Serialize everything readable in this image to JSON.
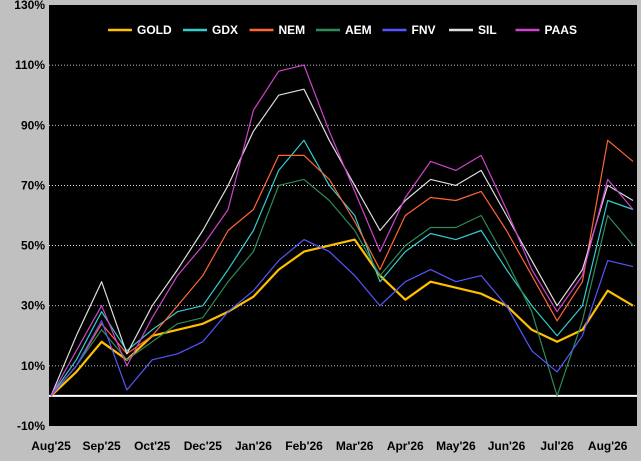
{
  "chart_data": {
    "type": "line",
    "title": "",
    "xlabel": "",
    "ylabel": "",
    "ylim": [
      -10,
      130
    ],
    "y_ticks": [
      "-10%",
      "10%",
      "30%",
      "50%",
      "70%",
      "90%",
      "110%",
      "130%"
    ],
    "y_tick_values": [
      -10,
      10,
      30,
      50,
      70,
      90,
      110,
      130
    ],
    "x_tick_labels": [
      "Aug'25",
      "Sep'25",
      "Oct'25",
      "Dec'25",
      "Jan'26",
      "Feb'26",
      "Mar'26",
      "Apr'26",
      "May'26",
      "Jun'26",
      "Jul'26",
      "Aug'26"
    ],
    "x_tick_index": [
      0,
      2,
      4,
      6,
      8,
      10,
      12,
      14,
      16,
      18,
      20,
      22
    ],
    "grid": "horizontal dotted",
    "legend_position": "top",
    "background": "#000000",
    "baseline": 0,
    "series": [
      {
        "name": "GOLD",
        "color": "#ffc000",
        "values": [
          0,
          8,
          18,
          12,
          20,
          22,
          24,
          28,
          33,
          42,
          48,
          50,
          52,
          40,
          32,
          38,
          36,
          34,
          30,
          22,
          18,
          22,
          35,
          30
        ]
      },
      {
        "name": "GDX",
        "color": "#33cccc",
        "values": [
          0,
          12,
          28,
          15,
          22,
          28,
          30,
          42,
          55,
          75,
          85,
          70,
          60,
          38,
          48,
          54,
          52,
          55,
          42,
          30,
          20,
          30,
          65,
          62
        ]
      },
      {
        "name": "NEM",
        "color": "#ff6633",
        "values": [
          0,
          10,
          24,
          14,
          20,
          30,
          40,
          55,
          62,
          80,
          80,
          72,
          58,
          42,
          60,
          66,
          65,
          68,
          55,
          40,
          25,
          38,
          85,
          78
        ]
      },
      {
        "name": "AEM",
        "color": "#2e8b57",
        "values": [
          0,
          10,
          22,
          12,
          18,
          24,
          26,
          38,
          48,
          70,
          72,
          65,
          55,
          40,
          50,
          56,
          56,
          60,
          45,
          28,
          0,
          25,
          60,
          50
        ]
      },
      {
        "name": "FNV",
        "color": "#5555ff",
        "values": [
          0,
          10,
          25,
          2,
          12,
          14,
          18,
          28,
          35,
          45,
          52,
          48,
          40,
          30,
          38,
          42,
          38,
          40,
          30,
          15,
          8,
          20,
          45,
          43
        ]
      },
      {
        "name": "SIL",
        "color": "#dddddd",
        "values": [
          0,
          20,
          38,
          14,
          30,
          42,
          55,
          70,
          88,
          100,
          102,
          85,
          70,
          55,
          65,
          72,
          70,
          75,
          60,
          45,
          30,
          42,
          70,
          65
        ]
      },
      {
        "name": "PAAS",
        "color": "#cc44cc",
        "values": [
          0,
          15,
          30,
          10,
          26,
          40,
          50,
          62,
          95,
          108,
          110,
          88,
          68,
          48,
          66,
          78,
          75,
          80,
          62,
          42,
          28,
          40,
          72,
          62
        ]
      }
    ]
  }
}
